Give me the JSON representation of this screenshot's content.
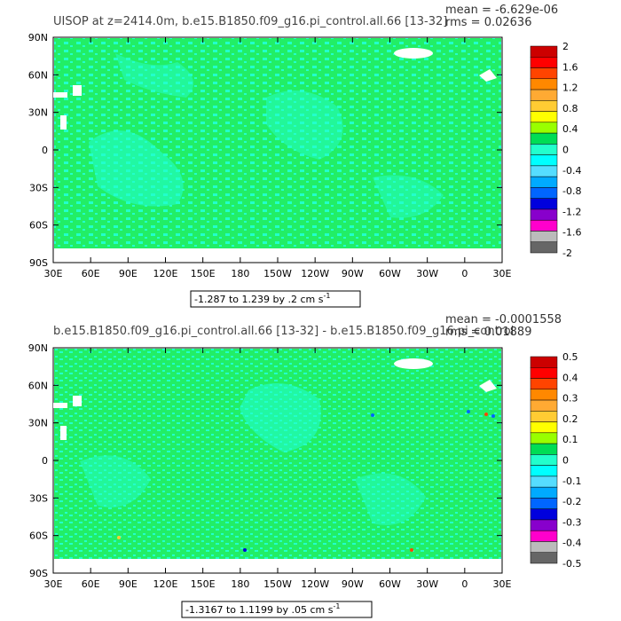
{
  "colors": {
    "land_mask": "#ffffff",
    "main_fill": "#22ee66",
    "near_zero_pos": "#00dd55",
    "near_zero_neg": "#22ffcc",
    "ice": "#ffffff"
  },
  "colorbar_colors": [
    "#cc0000",
    "#ff0000",
    "#ff4400",
    "#ff8800",
    "#ffaa33",
    "#ffcc33",
    "#ffff00",
    "#99ff00",
    "#00dd55",
    "#22ffcc",
    "#00ffff",
    "#55ddff",
    "#00aaff",
    "#0066ff",
    "#0000dd",
    "#8800cc",
    "#ff00cc",
    "#bbbbbb",
    "#666666"
  ],
  "panels": [
    {
      "title": "UISOP at z=2414.0m, b.e15.B1850.f09_g16.pi_control.all.66 [13-32]",
      "mean_label": "mean = -6.629e-06",
      "rms_label": "rms = 0.02636",
      "range_label": "-1.287 to 1.239 by .2 cm s",
      "range_sup": "-1",
      "colorbar_labels": [
        "2",
        "1.6",
        "1.2",
        "0.8",
        "0.4",
        "0",
        "-0.4",
        "-0.8",
        "-1.2",
        "-1.6",
        "-2"
      ]
    },
    {
      "title": "b.e15.B1850.f09_g16.pi_control.all.66 [13-32] - b.e15.B1850.f09_g16.pi_control",
      "mean_label": "mean = -0.0001558",
      "rms_label": "rms = 0.01889",
      "range_label": "-1.3167 to 1.1199 by .05 cm s",
      "range_sup": "-1",
      "colorbar_labels": [
        "0.5",
        "0.4",
        "0.3",
        "0.2",
        "0.1",
        "0",
        "-0.1",
        "-0.2",
        "-0.3",
        "-0.4",
        "-0.5"
      ]
    }
  ],
  "chart_data": [
    {
      "type": "heatmap",
      "title": "UISOP at z=2414.0m, b.e15.B1850.f09_g16.pi_control.all.66 [13-32]",
      "x_ticks": [
        "30E",
        "60E",
        "90E",
        "120E",
        "150E",
        "180",
        "150W",
        "120W",
        "90W",
        "60W",
        "30W",
        "0",
        "30E"
      ],
      "y_ticks": [
        "90N",
        "60N",
        "30N",
        "0",
        "30S",
        "60S",
        "90S"
      ],
      "x_range": [
        30,
        390
      ],
      "y_range": [
        -90,
        90
      ],
      "colorbar_levels": [
        2,
        1.6,
        1.2,
        0.8,
        0.4,
        0,
        -0.4,
        -0.8,
        -1.2,
        -1.6,
        -2
      ],
      "data_min": -1.287,
      "data_max": 1.239,
      "contour_interval": 0.2,
      "units": "cm s-1",
      "mean": -6.629e-06,
      "rms": 0.02636
    },
    {
      "type": "heatmap",
      "title": "b.e15.B1850.f09_g16.pi_control.all.66 [13-32] - b.e15.B1850.f09_g16.pi_control",
      "x_ticks": [
        "30E",
        "60E",
        "90E",
        "120E",
        "150E",
        "180",
        "150W",
        "120W",
        "90W",
        "60W",
        "30W",
        "0",
        "30E"
      ],
      "y_ticks": [
        "90N",
        "60N",
        "30N",
        "0",
        "30S",
        "60S",
        "90S"
      ],
      "x_range": [
        30,
        390
      ],
      "y_range": [
        -90,
        90
      ],
      "colorbar_levels": [
        0.5,
        0.4,
        0.3,
        0.2,
        0.1,
        0,
        -0.1,
        -0.2,
        -0.3,
        -0.4,
        -0.5
      ],
      "data_min": -1.3167,
      "data_max": 1.1199,
      "contour_interval": 0.05,
      "units": "cm s-1",
      "mean": -0.0001558,
      "rms": 0.01889
    }
  ]
}
